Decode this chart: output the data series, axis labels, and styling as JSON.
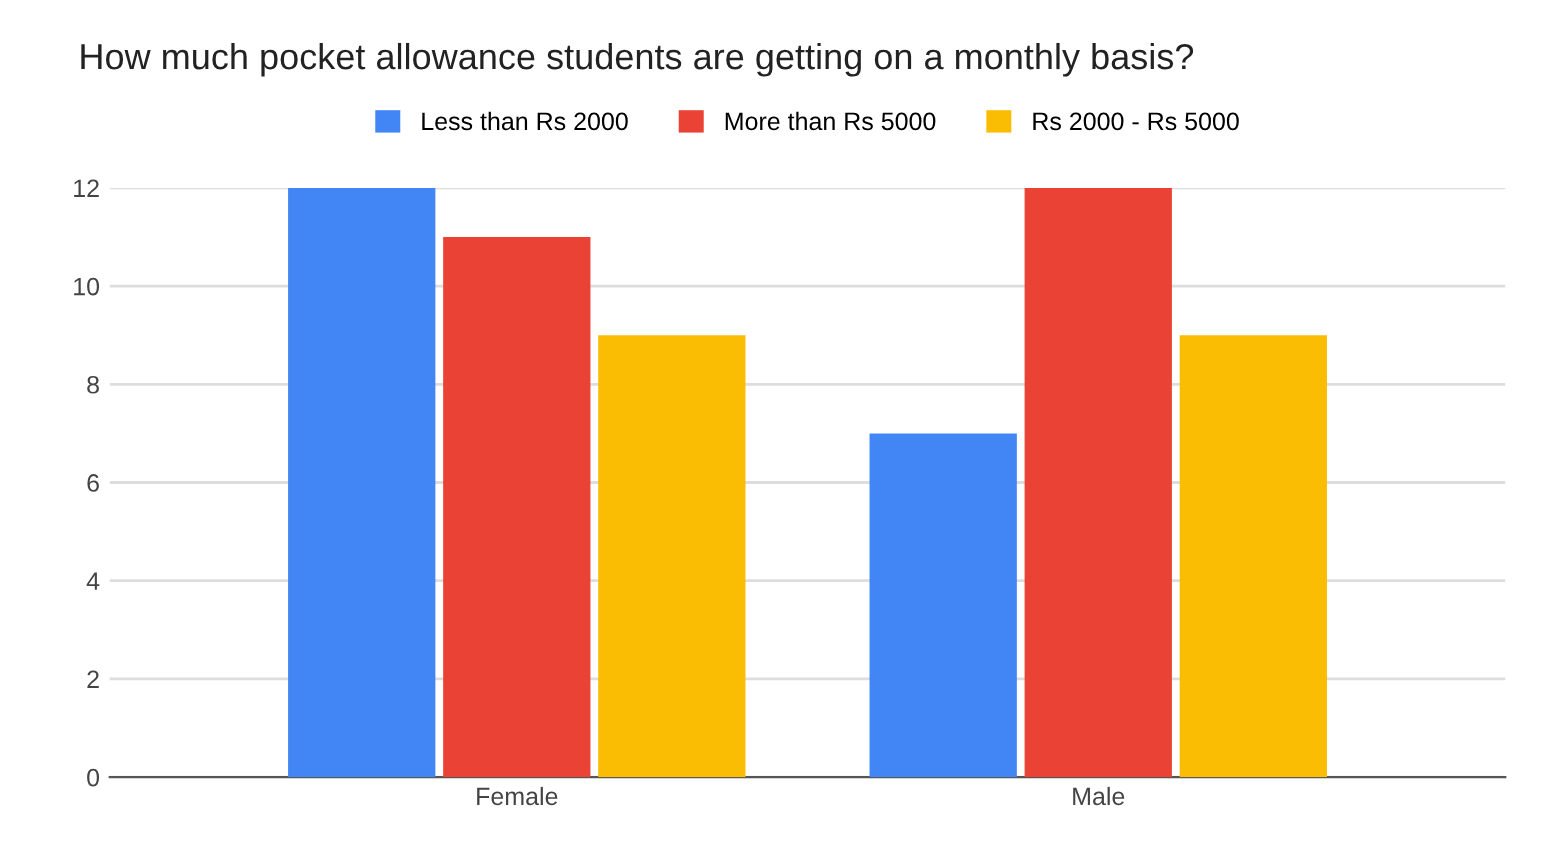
{
  "chart_data": {
    "type": "bar",
    "title": "How much pocket allowance students are getting on a monthly basis?",
    "categories": [
      "Female",
      "Male"
    ],
    "series": [
      {
        "name": "Less than Rs 2000",
        "color": "#4285f4",
        "values": [
          12,
          7
        ]
      },
      {
        "name": "More than Rs 5000",
        "color": "#ea4335",
        "values": [
          11,
          12
        ]
      },
      {
        "name": "Rs 2000 - Rs 5000",
        "color": "#fbbc04",
        "values": [
          9,
          9
        ]
      }
    ],
    "ylim": [
      0,
      12
    ],
    "yticks": [
      0,
      2,
      4,
      6,
      8,
      10,
      12
    ],
    "grid": "y",
    "legend": "top"
  }
}
